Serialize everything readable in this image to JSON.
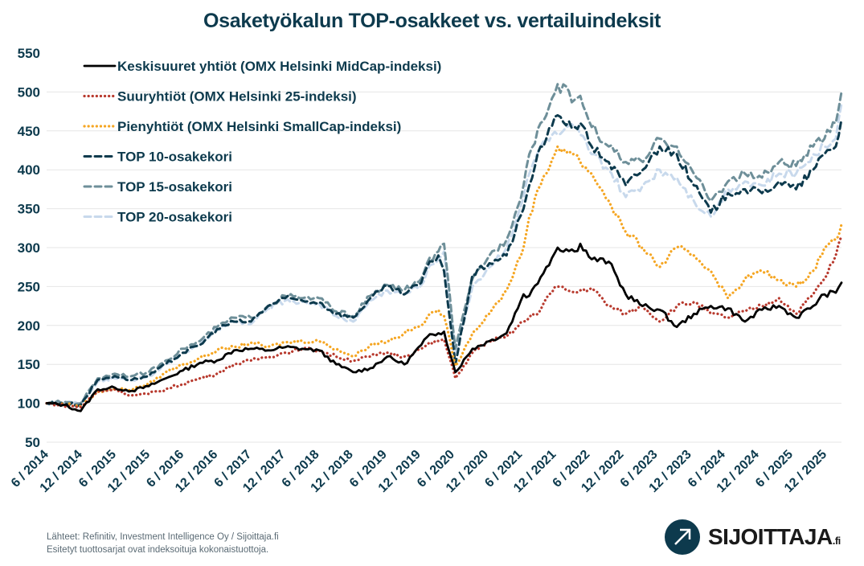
{
  "chart_data": {
    "type": "line",
    "title": "Osaketyökalun TOP-osakkeet vs. vertailuindeksit",
    "xlabel": "",
    "ylabel": "",
    "ylim": [
      50,
      550
    ],
    "yticks": [
      50,
      100,
      150,
      200,
      250,
      300,
      350,
      400,
      450,
      500,
      550
    ],
    "xtick_labels": [
      "6 / 2014",
      "12 / 2014",
      "6 / 2015",
      "12 / 2015",
      "6 / 2016",
      "12 / 2016",
      "6 / 2017",
      "12 / 2017",
      "6 / 2018",
      "12 / 2018",
      "6 / 2019",
      "12 / 2019",
      "6 / 2020",
      "12 / 2020",
      "6 / 2021",
      "12 / 2021",
      "6 / 2022",
      "12 / 2022",
      "6 / 2023",
      "12 / 2023",
      "6 / 2024",
      "12 / 2024",
      "6 / 2025",
      "12 / 2025"
    ],
    "x_months_from_start": [
      0,
      3,
      6,
      9,
      12,
      15,
      18,
      21,
      24,
      27,
      30,
      33,
      36,
      39,
      42,
      45,
      48,
      51,
      54,
      57,
      60,
      63,
      66,
      67,
      69,
      70,
      72,
      75,
      78,
      81,
      84,
      85,
      87,
      88,
      90,
      93,
      94,
      96,
      99,
      102,
      105,
      108,
      111,
      114,
      117,
      120,
      123,
      126,
      129,
      132,
      135,
      137,
      139,
      140
    ],
    "grid": true,
    "legend_position": "top-left",
    "series": [
      {
        "name": "Keskisuuret yhtiöt (OMX Helsinki MidCap-indeksi)",
        "style": "solid",
        "color": "#000000",
        "values": [
          100,
          98,
          90,
          118,
          120,
          116,
          122,
          132,
          142,
          152,
          155,
          168,
          170,
          168,
          172,
          170,
          168,
          150,
          140,
          145,
          160,
          150,
          175,
          185,
          190,
          192,
          140,
          170,
          180,
          190,
          240,
          238,
          262,
          275,
          300,
          295,
          305,
          285,
          282,
          240,
          225,
          220,
          198,
          215,
          225,
          222,
          205,
          220,
          225,
          210,
          225,
          240,
          242,
          255
        ]
      },
      {
        "name": "Suuryhtiöt (OMX Helsinki 25-indeksi)",
        "style": "dotted",
        "color": "#b83a2e",
        "values": [
          100,
          97,
          95,
          115,
          118,
          110,
          112,
          118,
          125,
          132,
          138,
          150,
          155,
          160,
          165,
          170,
          168,
          160,
          155,
          160,
          165,
          160,
          170,
          175,
          180,
          182,
          132,
          165,
          180,
          185,
          205,
          210,
          220,
          235,
          250,
          242,
          245,
          248,
          225,
          215,
          225,
          205,
          225,
          230,
          215,
          210,
          218,
          225,
          235,
          215,
          240,
          260,
          290,
          315
        ]
      },
      {
        "name": "Pienyhtiöt (OMX Helsinki SmallCap-indeksi)",
        "style": "dotted",
        "color": "#f5a623",
        "values": [
          100,
          99,
          96,
          115,
          118,
          118,
          125,
          140,
          150,
          158,
          168,
          172,
          178,
          172,
          178,
          180,
          180,
          170,
          160,
          175,
          180,
          190,
          200,
          210,
          220,
          212,
          148,
          190,
          215,
          245,
          300,
          340,
          380,
          395,
          430,
          420,
          410,
          395,
          360,
          320,
          300,
          275,
          300,
          290,
          270,
          235,
          260,
          270,
          258,
          250,
          270,
          300,
          310,
          330
        ]
      },
      {
        "name": "TOP 10-osakekori",
        "style": "dashed",
        "color": "#0d3a4d",
        "values": [
          100,
          100,
          98,
          130,
          135,
          130,
          135,
          150,
          165,
          175,
          195,
          205,
          205,
          225,
          235,
          232,
          230,
          215,
          210,
          235,
          250,
          240,
          255,
          275,
          290,
          270,
          150,
          265,
          280,
          290,
          350,
          380,
          430,
          440,
          470,
          455,
          460,
          430,
          410,
          380,
          400,
          430,
          420,
          380,
          345,
          370,
          375,
          370,
          385,
          375,
          400,
          420,
          430,
          465
        ]
      },
      {
        "name": "TOP 15-osakekori",
        "style": "dashed",
        "color": "#6e8f99",
        "values": [
          100,
          102,
          100,
          132,
          138,
          135,
          140,
          155,
          170,
          180,
          198,
          210,
          210,
          225,
          238,
          235,
          235,
          218,
          212,
          238,
          252,
          245,
          260,
          280,
          295,
          305,
          170,
          260,
          290,
          310,
          380,
          420,
          460,
          470,
          510,
          490,
          495,
          455,
          430,
          410,
          410,
          440,
          430,
          395,
          360,
          385,
          395,
          390,
          410,
          405,
          430,
          440,
          460,
          500
        ]
      },
      {
        "name": "TOP 20-osakekori",
        "style": "dashed",
        "color": "#c8d9ec",
        "values": [
          100,
          101,
          99,
          128,
          132,
          130,
          135,
          150,
          165,
          175,
          195,
          205,
          202,
          222,
          232,
          230,
          228,
          212,
          205,
          232,
          245,
          240,
          252,
          270,
          285,
          295,
          165,
          250,
          275,
          300,
          365,
          395,
          430,
          440,
          445,
          455,
          445,
          420,
          400,
          365,
          380,
          400,
          390,
          360,
          340,
          375,
          385,
          380,
          395,
          395,
          420,
          430,
          440,
          485
        ]
      }
    ]
  },
  "source_lines": [
    "Lähteet: Refinitiv, Investment Intelligence Oy / Sijoittaja.fi",
    "Esitetyt tuottosarjat ovat indeksoituja kokonaistuottoja."
  ],
  "logo": {
    "text": "SIJOITTAJA",
    "suffix": ".fi",
    "icon": "arrow-up-right-icon"
  }
}
